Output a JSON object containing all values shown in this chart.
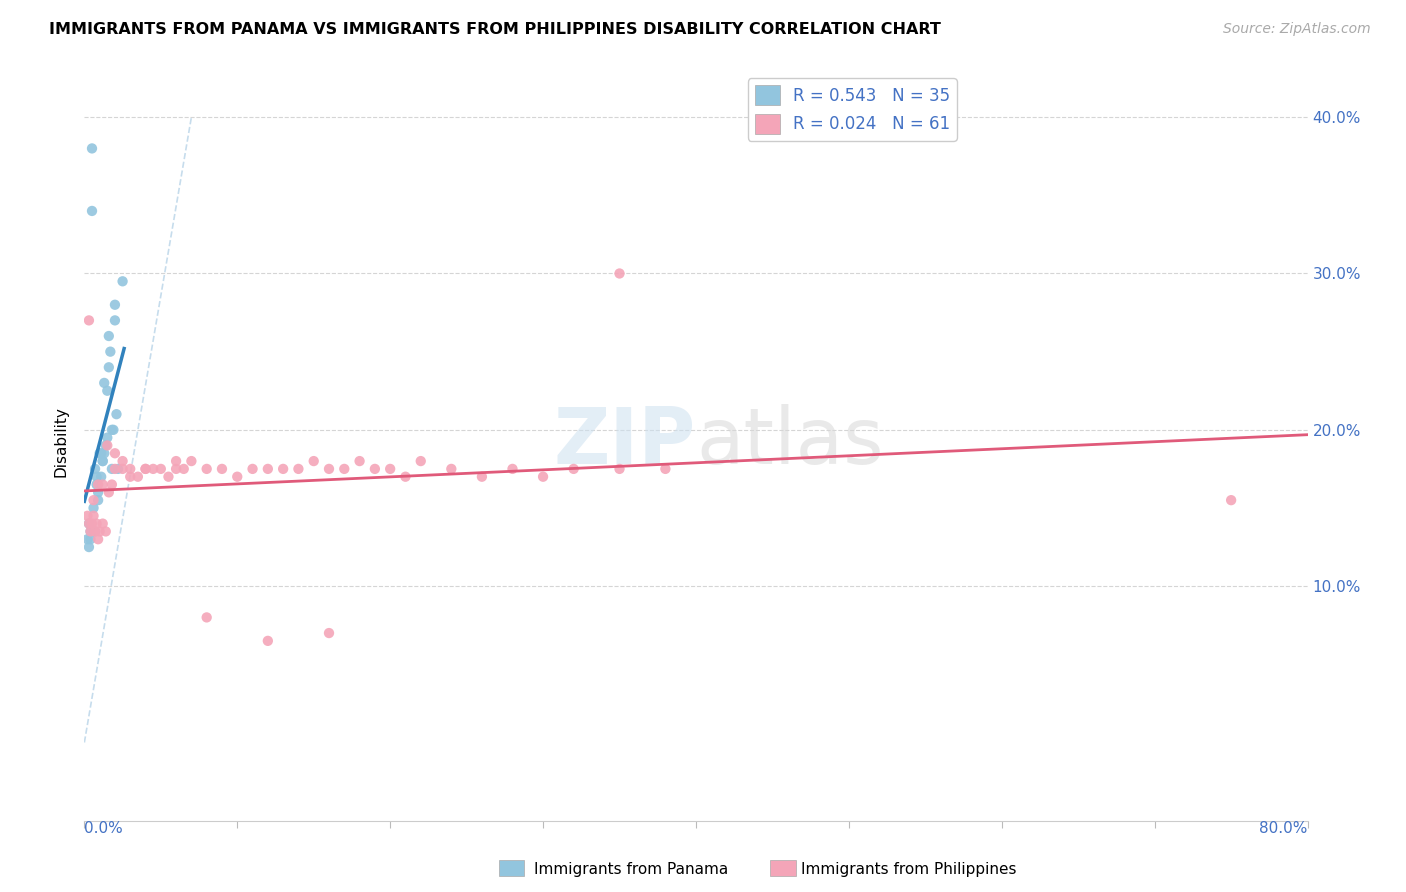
{
  "title": "IMMIGRANTS FROM PANAMA VS IMMIGRANTS FROM PHILIPPINES DISABILITY CORRELATION CHART",
  "source": "Source: ZipAtlas.com",
  "ylabel": "Disability",
  "ytick_labels": [
    "10.0%",
    "20.0%",
    "30.0%",
    "40.0%"
  ],
  "ytick_values": [
    0.1,
    0.2,
    0.3,
    0.4
  ],
  "xlim": [
    0.0,
    0.8
  ],
  "ylim": [
    -0.05,
    0.435
  ],
  "r_panama": 0.543,
  "n_panama": 35,
  "r_philippines": 0.024,
  "n_philippines": 61,
  "color_panama": "#92c5de",
  "color_philippines": "#f4a5b8",
  "color_panama_line": "#3182bd",
  "color_philippines_line": "#e05a7a",
  "color_dashed": "#b8d4e8",
  "background_color": "#ffffff",
  "panama_x": [
    0.002,
    0.003,
    0.004,
    0.005,
    0.006,
    0.007,
    0.008,
    0.009,
    0.01,
    0.011,
    0.012,
    0.013,
    0.014,
    0.015,
    0.016,
    0.017,
    0.018,
    0.019,
    0.02,
    0.021,
    0.022,
    0.003,
    0.005,
    0.007,
    0.009,
    0.011,
    0.013,
    0.015,
    0.018,
    0.02,
    0.004,
    0.008,
    0.012,
    0.016,
    0.025
  ],
  "panama_y": [
    0.13,
    0.125,
    0.135,
    0.38,
    0.15,
    0.175,
    0.17,
    0.16,
    0.185,
    0.17,
    0.18,
    0.185,
    0.19,
    0.195,
    0.24,
    0.25,
    0.175,
    0.2,
    0.28,
    0.21,
    0.175,
    0.14,
    0.34,
    0.135,
    0.155,
    0.185,
    0.23,
    0.225,
    0.2,
    0.27,
    0.13,
    0.165,
    0.18,
    0.26,
    0.295
  ],
  "philippines_x": [
    0.002,
    0.003,
    0.004,
    0.005,
    0.006,
    0.007,
    0.008,
    0.009,
    0.01,
    0.012,
    0.014,
    0.016,
    0.018,
    0.02,
    0.025,
    0.03,
    0.035,
    0.04,
    0.045,
    0.05,
    0.055,
    0.06,
    0.065,
    0.07,
    0.08,
    0.09,
    0.1,
    0.11,
    0.12,
    0.13,
    0.14,
    0.15,
    0.16,
    0.17,
    0.18,
    0.19,
    0.2,
    0.21,
    0.22,
    0.24,
    0.26,
    0.28,
    0.3,
    0.32,
    0.35,
    0.38,
    0.003,
    0.006,
    0.009,
    0.012,
    0.015,
    0.02,
    0.025,
    0.03,
    0.04,
    0.06,
    0.08,
    0.12,
    0.16,
    0.75,
    0.35
  ],
  "philippines_y": [
    0.145,
    0.14,
    0.135,
    0.14,
    0.145,
    0.135,
    0.14,
    0.13,
    0.135,
    0.14,
    0.135,
    0.16,
    0.165,
    0.175,
    0.175,
    0.17,
    0.17,
    0.175,
    0.175,
    0.175,
    0.17,
    0.175,
    0.175,
    0.18,
    0.175,
    0.175,
    0.17,
    0.175,
    0.175,
    0.175,
    0.175,
    0.18,
    0.175,
    0.175,
    0.18,
    0.175,
    0.175,
    0.17,
    0.18,
    0.175,
    0.17,
    0.175,
    0.17,
    0.175,
    0.175,
    0.175,
    0.27,
    0.155,
    0.165,
    0.165,
    0.19,
    0.185,
    0.18,
    0.175,
    0.175,
    0.18,
    0.08,
    0.065,
    0.07,
    0.155,
    0.3
  ]
}
